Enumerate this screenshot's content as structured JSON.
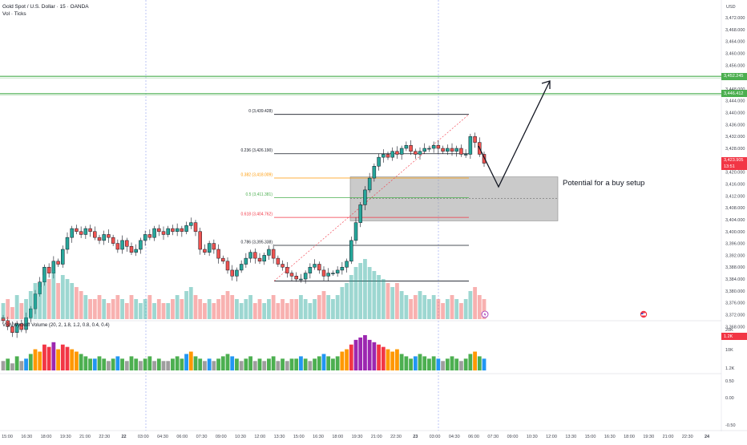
{
  "header": {
    "symbol_line": "Gold Spot / U.S. Dollar · 15 · OANDA",
    "volume_line": "Vol · Ticks"
  },
  "currency": "USD",
  "price_axis": {
    "ticks": [
      "3,472.000",
      "3,468.000",
      "3,464.000",
      "3,460.000",
      "3,456.000",
      "3,448.000",
      "3,444.000",
      "3,440.000",
      "3,436.000",
      "3,432.000",
      "3,428.000",
      "3,420.000",
      "3,416.000",
      "3,412.000",
      "3,408.000",
      "3,404.000",
      "3,400.000",
      "3,396.000",
      "3,392.000",
      "3,388.000",
      "3,384.000",
      "3,380.000",
      "3,376.000",
      "3,372.000",
      "3,368.000"
    ],
    "tick_values": [
      3472,
      3468,
      3464,
      3460,
      3456,
      3448,
      3444,
      3440,
      3436,
      3432,
      3428,
      3420,
      3416,
      3412,
      3408,
      3404,
      3400,
      3396,
      3392,
      3388,
      3384,
      3380,
      3376,
      3372,
      3368
    ],
    "tags": [
      {
        "label": "3,452.245",
        "value": 3452.245,
        "color": "#4caf50"
      },
      {
        "label": "3,446.412",
        "value": 3446.412,
        "color": "#4caf50"
      },
      {
        "label": "3,423.905",
        "value": 3423.905,
        "color": "#f23645"
      },
      {
        "label": "13:51",
        "value": 3421.9,
        "color": "#f23645"
      },
      {
        "label": "1.2K",
        "value": 3364.7,
        "color": "#f23645"
      }
    ]
  },
  "vsa_axis": {
    "ticks": [
      "20K",
      "10K",
      "1.2K"
    ],
    "osc_ticks": [
      "0.50",
      "0.00",
      "-0.50"
    ]
  },
  "time_axis": {
    "labels": [
      "15:00",
      "16:30",
      "18:00",
      "19:30",
      "21:00",
      "22:30",
      "22",
      "03:00",
      "04:30",
      "06:00",
      "07:30",
      "09:00",
      "10:30",
      "12:00",
      "13:30",
      "15:00",
      "16:30",
      "18:00",
      "19:30",
      "21:00",
      "22:30",
      "23",
      "03:00",
      "04:30",
      "06:00",
      "07:30",
      "09:00",
      "10:30",
      "12:00",
      "13:30",
      "15:00",
      "16:30",
      "18:00",
      "19:30",
      "21:00",
      "22:30",
      "24"
    ]
  },
  "fib_levels": [
    {
      "ratio": "0",
      "label": "0 (3,439.428)",
      "value": 3439.428,
      "color": "#131722"
    },
    {
      "ratio": "0.236",
      "label": "0.236 (3,426.190)",
      "value": 3426.19,
      "color": "#131722"
    },
    {
      "ratio": "0.382",
      "label": "0.382 (3,418.009)",
      "value": 3418.009,
      "color": "#ff9800"
    },
    {
      "ratio": "0.5",
      "label": "0.5 (3,411.381)",
      "value": 3411.381,
      "color": "#4caf50"
    },
    {
      "ratio": "0.618",
      "label": "0.618 (3,404.762)",
      "value": 3404.762,
      "color": "#f23645"
    },
    {
      "ratio": "0.786",
      "label": "0.786 (3,395.338)",
      "value": 3395.338,
      "color": "#131722"
    },
    {
      "ratio": "1",
      "label": "",
      "value": 3383.358,
      "color": "#131722"
    }
  ],
  "annotation": "Potential for a buy setup",
  "vsa_title": "VSA Wyckoff Volume (20, 2, 1.8, 1.2, 0.8, 0.4, 0.4)",
  "colors": {
    "up": "#26a69a",
    "down": "#ef5350",
    "level": "#4caf50",
    "zone": "#9e9e9e"
  },
  "icons": [
    "lightning-icon",
    "flag-icon"
  ],
  "chart_data": {
    "type": "candlestick",
    "instrument": "Gold Spot / U.S. Dollar",
    "interval": "15",
    "ylim": [
      3365,
      3476
    ],
    "close_path": [
      3370,
      3368,
      3366,
      3369,
      3367,
      3371,
      3374,
      3379,
      3383,
      3388,
      3386,
      3390,
      3389,
      3394,
      3398,
      3401,
      3400,
      3399,
      3401,
      3400,
      3398,
      3397,
      3399,
      3398,
      3396,
      3394,
      3397,
      3395,
      3393,
      3394,
      3397,
      3399,
      3398,
      3401,
      3400,
      3399,
      3401,
      3400,
      3401,
      3400,
      3402,
      3403,
      3400,
      3394,
      3393,
      3396,
      3394,
      3391,
      3390,
      3387,
      3385,
      3387,
      3389,
      3391,
      3393,
      3391,
      3390,
      3392,
      3394,
      3391,
      3389,
      3388,
      3386,
      3385,
      3384,
      3384,
      3386,
      3388,
      3389,
      3387,
      3385,
      3386,
      3386,
      3387,
      3388,
      3390,
      3397,
      3403,
      3409,
      3414,
      3418,
      3422,
      3425,
      3426,
      3425,
      3427,
      3426,
      3428,
      3429,
      3427,
      3426,
      3427,
      3428,
      3428,
      3429,
      3428,
      3427,
      3428,
      3427,
      3428,
      3426,
      3426,
      3432,
      3430,
      3426,
      3423
    ],
    "volume": [
      4,
      5,
      3,
      6,
      4,
      5,
      7,
      9,
      8,
      11,
      10,
      12,
      9,
      11,
      10,
      9,
      8,
      7,
      6,
      5,
      5,
      6,
      5,
      4,
      5,
      6,
      5,
      4,
      6,
      5,
      4,
      5,
      6,
      4,
      5,
      4,
      4,
      5,
      6,
      5,
      7,
      8,
      6,
      5,
      4,
      5,
      4,
      5,
      6,
      7,
      6,
      5,
      4,
      5,
      6,
      4,
      5,
      4,
      5,
      6,
      4,
      5,
      4,
      5,
      5,
      6,
      5,
      4,
      5,
      6,
      7,
      6,
      5,
      6,
      8,
      9,
      11,
      13,
      14,
      15,
      13,
      12,
      11,
      10,
      9,
      8,
      9,
      7,
      6,
      5,
      6,
      7,
      6,
      5,
      6,
      5,
      4,
      5,
      6,
      5,
      4,
      5,
      7,
      8,
      6,
      5
    ]
  }
}
